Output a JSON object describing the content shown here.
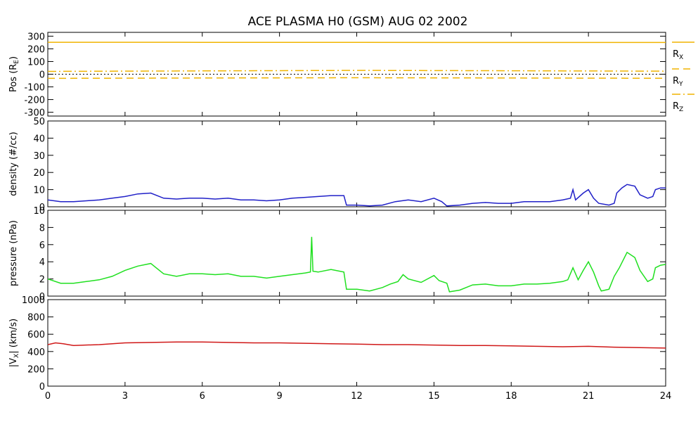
{
  "chart_data": {
    "title": "ACE PLASMA H0 (GSM)   AUG 02 2002",
    "type": "line",
    "xlim": [
      0,
      24
    ],
    "x_ticks": [
      0,
      3,
      6,
      9,
      12,
      15,
      18,
      21,
      24
    ],
    "x_tick_labels": [
      "0",
      "3",
      "6",
      "9",
      "12",
      "15",
      "18",
      "21",
      "24"
    ],
    "panels": [
      {
        "id": "pos",
        "ylabel": "Pos (R",
        "ylabel_sub": "E",
        "ylabel_tail": ")",
        "ylim": [
          -330,
          330
        ],
        "yticks": [
          -300,
          -200,
          -100,
          0,
          100,
          200,
          300
        ],
        "ytick_labels": [
          "-300",
          "-200",
          "-100",
          "0",
          "100",
          "200",
          "300"
        ],
        "zero_line": true,
        "series": [
          {
            "name": "R",
            "sub": "X",
            "color": "#f0b400",
            "dash": "solid",
            "x": [
              0,
              6,
              12,
              18,
              24
            ],
            "y": [
              252,
              251,
              251,
              250,
              250
            ]
          },
          {
            "name": "R",
            "sub": "Y",
            "color": "#f0b400",
            "dash": "dashed",
            "x": [
              0,
              6,
              12,
              18,
              24
            ],
            "y": [
              -33,
              -30,
              -28,
              -30,
              -32
            ]
          },
          {
            "name": "R",
            "sub": "Z",
            "color": "#f0b400",
            "dash": "dashdot",
            "x": [
              0,
              6,
              12,
              18,
              24
            ],
            "y": [
              22,
              26,
              30,
              27,
              24
            ]
          }
        ]
      },
      {
        "id": "density",
        "ylabel": "density (#/cc)",
        "ylim": [
          0,
          50
        ],
        "yticks": [
          0,
          10,
          20,
          30,
          40,
          50
        ],
        "ytick_labels": [
          "0",
          "10",
          "20",
          "30",
          "40",
          "50"
        ],
        "series": [
          {
            "color": "#2020c8",
            "x": [
              0,
              0.5,
              1,
              1.5,
              2,
              2.5,
              3,
              3.5,
              4,
              4.5,
              5,
              5.5,
              6,
              6.5,
              7,
              7.5,
              8,
              8.5,
              9,
              9.5,
              10,
              10.5,
              11,
              11.5,
              11.6,
              12,
              12.5,
              13,
              13.5,
              14,
              14.5,
              15,
              15.3,
              15.5,
              16,
              16.5,
              17,
              17.5,
              18,
              18.5,
              19,
              19.5,
              20,
              20.3,
              20.4,
              20.5,
              20.8,
              21,
              21.2,
              21.4,
              21.8,
              22,
              22.1,
              22.3,
              22.5,
              22.8,
              23,
              23.3,
              23.5,
              23.6,
              23.8,
              24
            ],
            "y": [
              4,
              3,
              3,
              3.5,
              4,
              5,
              6,
              7.5,
              8,
              5,
              4.5,
              5,
              5,
              4.5,
              5,
              4,
              4,
              3.5,
              4,
              5,
              5.5,
              6,
              6.5,
              6.5,
              1,
              1,
              0.5,
              1,
              3,
              4,
              3,
              5,
              3,
              0.5,
              1,
              2,
              2.5,
              2,
              2,
              3,
              3,
              3,
              4,
              5,
              10,
              4,
              8,
              10,
              5,
              2,
              1,
              2,
              8,
              11,
              13,
              12,
              7,
              5,
              6,
              10,
              11,
              11
            ]
          }
        ]
      },
      {
        "id": "pressure",
        "ylabel": "pressure (nPa)",
        "ylim": [
          0,
          10
        ],
        "yticks": [
          0,
          2,
          4,
          6,
          8,
          10
        ],
        "ytick_labels": [
          "0",
          "2",
          "4",
          "6",
          "8",
          "10"
        ],
        "series": [
          {
            "color": "#20e020",
            "x": [
              0,
              0.5,
              1,
              1.5,
              2,
              2.5,
              3,
              3.5,
              4,
              4.5,
              5,
              5.5,
              6,
              6.5,
              7,
              7.5,
              8,
              8.5,
              9,
              9.5,
              10,
              10.2,
              10.25,
              10.3,
              10.5,
              11,
              11.5,
              11.6,
              12,
              12.5,
              13,
              13.3,
              13.6,
              13.8,
              14,
              14.5,
              15,
              15.2,
              15.5,
              15.6,
              16,
              16.5,
              17,
              17.5,
              18,
              18.5,
              19,
              19.5,
              20,
              20.2,
              20.4,
              20.6,
              20.8,
              21,
              21.2,
              21.4,
              21.5,
              21.8,
              22,
              22.2,
              22.5,
              22.8,
              23,
              23.3,
              23.5,
              23.6,
              23.8,
              24
            ],
            "y": [
              2,
              1.5,
              1.5,
              1.7,
              1.9,
              2.3,
              3,
              3.5,
              3.8,
              2.6,
              2.3,
              2.6,
              2.6,
              2.5,
              2.6,
              2.3,
              2.3,
              2.1,
              2.3,
              2.5,
              2.7,
              2.8,
              6.9,
              2.9,
              2.8,
              3.1,
              2.8,
              0.8,
              0.8,
              0.6,
              1,
              1.4,
              1.7,
              2.5,
              2,
              1.6,
              2.4,
              1.8,
              1.5,
              0.5,
              0.7,
              1.3,
              1.4,
              1.2,
              1.2,
              1.4,
              1.4,
              1.5,
              1.7,
              1.9,
              3.3,
              1.9,
              3,
              4,
              2.8,
              1.2,
              0.6,
              0.8,
              2.3,
              3.3,
              5.1,
              4.5,
              3,
              1.7,
              2,
              3.3,
              3.6,
              3.7
            ]
          }
        ]
      },
      {
        "id": "vx",
        "ylabel": "|V",
        "ylabel_sub": "X",
        "ylabel_tail": "| (km/s)",
        "ylim": [
          0,
          1000
        ],
        "yticks": [
          0,
          200,
          400,
          600,
          800,
          1000
        ],
        "ytick_labels": [
          "0",
          "200",
          "400",
          "600",
          "800",
          "1000"
        ],
        "series": [
          {
            "color": "#d01818",
            "x": [
              0,
              0.3,
              0.6,
              1,
              2,
              3,
              4,
              5,
              6,
              7,
              8,
              9,
              10,
              11,
              12,
              13,
              14,
              15,
              16,
              17,
              18,
              19,
              20,
              21,
              22,
              23,
              24
            ],
            "y": [
              480,
              500,
              490,
              470,
              480,
              500,
              505,
              510,
              510,
              505,
              500,
              500,
              495,
              490,
              485,
              480,
              480,
              475,
              470,
              470,
              465,
              460,
              455,
              460,
              450,
              445,
              440
            ]
          }
        ]
      }
    ]
  }
}
